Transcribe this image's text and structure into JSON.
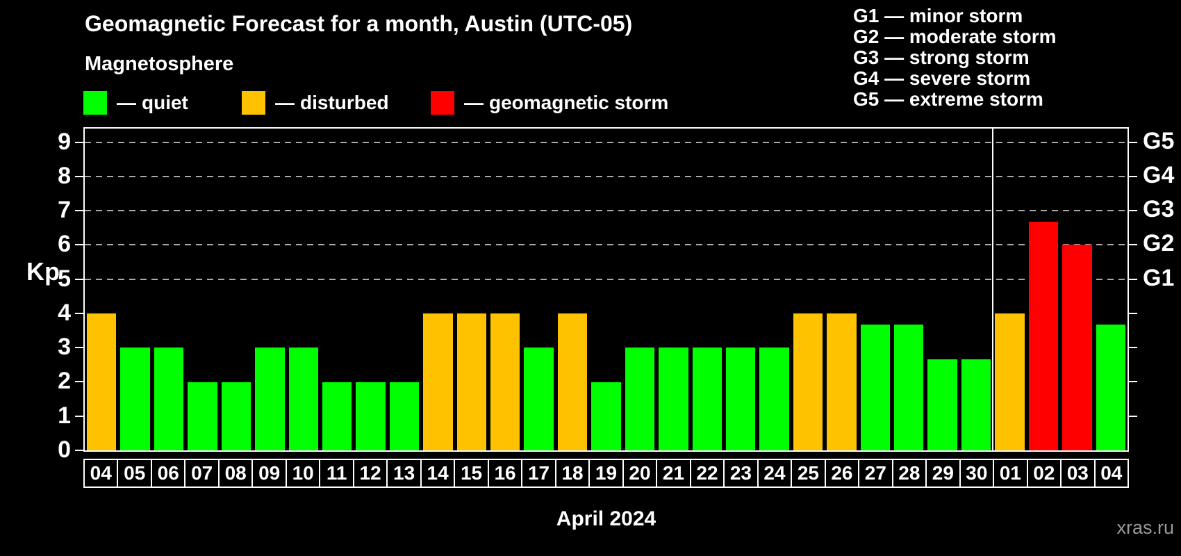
{
  "page": {
    "background": "#000000"
  },
  "watermark": "xras.ru",
  "chart_data": {
    "type": "bar",
    "title": "Geomagnetic Forecast for a month, Austin (UTC-05)",
    "subtitle": "Magnetosphere",
    "ylabel": "Kp",
    "xlabel": "April 2024",
    "ylim": [
      0,
      9
    ],
    "yticks": [
      0,
      1,
      2,
      3,
      4,
      5,
      6,
      7,
      8,
      9
    ],
    "gridline_kp": [
      5,
      6,
      7,
      8,
      9
    ],
    "grid_style": "horizontal dashed gray lines at Kp 5-9 only",
    "legend_position": "top-left",
    "dash": "—",
    "legend": [
      {
        "key": "quiet",
        "label": "quiet",
        "color": "#00ff00"
      },
      {
        "key": "disturbed",
        "label": "disturbed",
        "color": "#ffc200"
      },
      {
        "key": "storm",
        "label": "geomagnetic storm",
        "color": "#ff0000"
      }
    ],
    "level_colors": {
      "quiet": "#00ff00",
      "disturbed": "#ffc200",
      "storm": "#ff0000"
    },
    "g_levels": [
      {
        "label": "G1",
        "kp": 5
      },
      {
        "label": "G2",
        "kp": 6
      },
      {
        "label": "G3",
        "kp": 7
      },
      {
        "label": "G4",
        "kp": 8
      },
      {
        "label": "G5",
        "kp": 9
      }
    ],
    "g_scale_legend": [
      "G1 — minor storm",
      "G2 — moderate storm",
      "G3 — strong storm",
      "G4 — severe storm",
      "G5 — extreme storm"
    ],
    "month_separator_after_bar_index": 26,
    "bars": [
      {
        "day": "04",
        "value": 4,
        "level": "disturbed"
      },
      {
        "day": "05",
        "value": 3,
        "level": "quiet"
      },
      {
        "day": "06",
        "value": 3,
        "level": "quiet"
      },
      {
        "day": "07",
        "value": 2,
        "level": "quiet"
      },
      {
        "day": "08",
        "value": 2,
        "level": "quiet"
      },
      {
        "day": "09",
        "value": 3,
        "level": "quiet"
      },
      {
        "day": "10",
        "value": 3,
        "level": "quiet"
      },
      {
        "day": "11",
        "value": 2,
        "level": "quiet"
      },
      {
        "day": "12",
        "value": 2,
        "level": "quiet"
      },
      {
        "day": "13",
        "value": 2,
        "level": "quiet"
      },
      {
        "day": "14",
        "value": 4,
        "level": "disturbed"
      },
      {
        "day": "15",
        "value": 4,
        "level": "disturbed"
      },
      {
        "day": "16",
        "value": 4,
        "level": "disturbed"
      },
      {
        "day": "17",
        "value": 3,
        "level": "quiet"
      },
      {
        "day": "18",
        "value": 4,
        "level": "disturbed"
      },
      {
        "day": "19",
        "value": 2,
        "level": "quiet"
      },
      {
        "day": "20",
        "value": 3,
        "level": "quiet"
      },
      {
        "day": "21",
        "value": 3,
        "level": "quiet"
      },
      {
        "day": "22",
        "value": 3,
        "level": "quiet"
      },
      {
        "day": "23",
        "value": 3,
        "level": "quiet"
      },
      {
        "day": "24",
        "value": 3,
        "level": "quiet"
      },
      {
        "day": "25",
        "value": 4,
        "level": "disturbed"
      },
      {
        "day": "26",
        "value": 4,
        "level": "disturbed"
      },
      {
        "day": "27",
        "value": 3.67,
        "level": "quiet"
      },
      {
        "day": "28",
        "value": 3.67,
        "level": "quiet"
      },
      {
        "day": "29",
        "value": 2.67,
        "level": "quiet"
      },
      {
        "day": "30",
        "value": 2.67,
        "level": "quiet"
      },
      {
        "day": "01",
        "value": 4,
        "level": "disturbed"
      },
      {
        "day": "02",
        "value": 6.67,
        "level": "storm"
      },
      {
        "day": "03",
        "value": 6,
        "level": "storm"
      },
      {
        "day": "04",
        "value": 3.67,
        "level": "quiet"
      }
    ]
  }
}
